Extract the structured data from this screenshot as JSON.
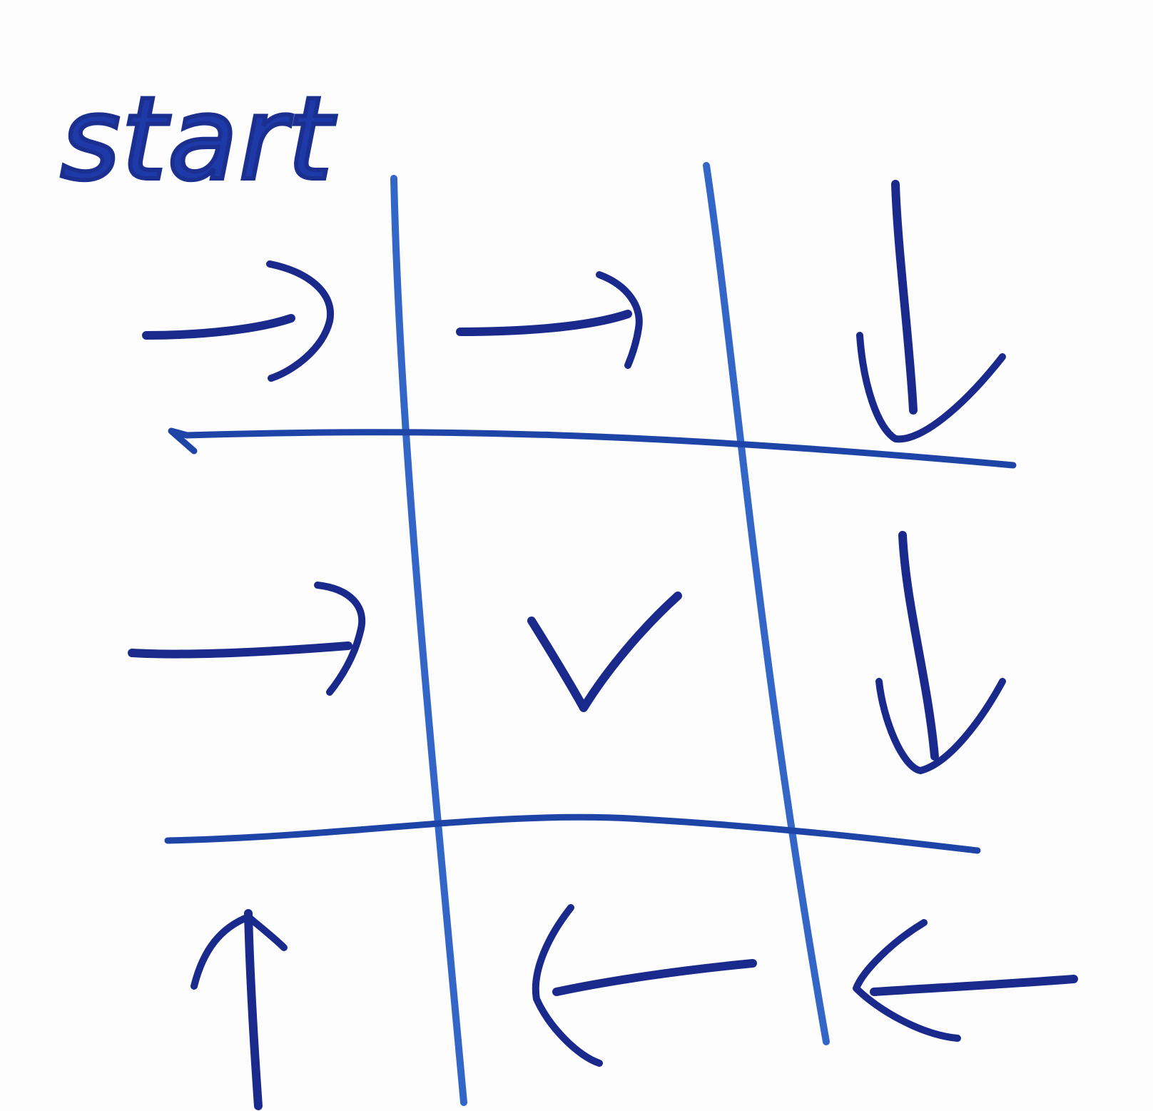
{
  "label": {
    "start": "start"
  },
  "colors": {
    "ink_dark": "#1a2a8c",
    "ink_light": "#3e6fd0",
    "paper": "#fefdfd"
  },
  "grid": {
    "rows": 3,
    "cols": 3
  },
  "cells": [
    {
      "row": 1,
      "col": 1,
      "mark": "arrow-right"
    },
    {
      "row": 1,
      "col": 2,
      "mark": "arrow-right"
    },
    {
      "row": 1,
      "col": 3,
      "mark": "arrow-down"
    },
    {
      "row": 2,
      "col": 1,
      "mark": "arrow-right"
    },
    {
      "row": 2,
      "col": 2,
      "mark": "check"
    },
    {
      "row": 2,
      "col": 3,
      "mark": "arrow-down"
    },
    {
      "row": 3,
      "col": 1,
      "mark": "arrow-up"
    },
    {
      "row": 3,
      "col": 2,
      "mark": "arrow-left"
    },
    {
      "row": 3,
      "col": 3,
      "mark": "arrow-left"
    }
  ]
}
